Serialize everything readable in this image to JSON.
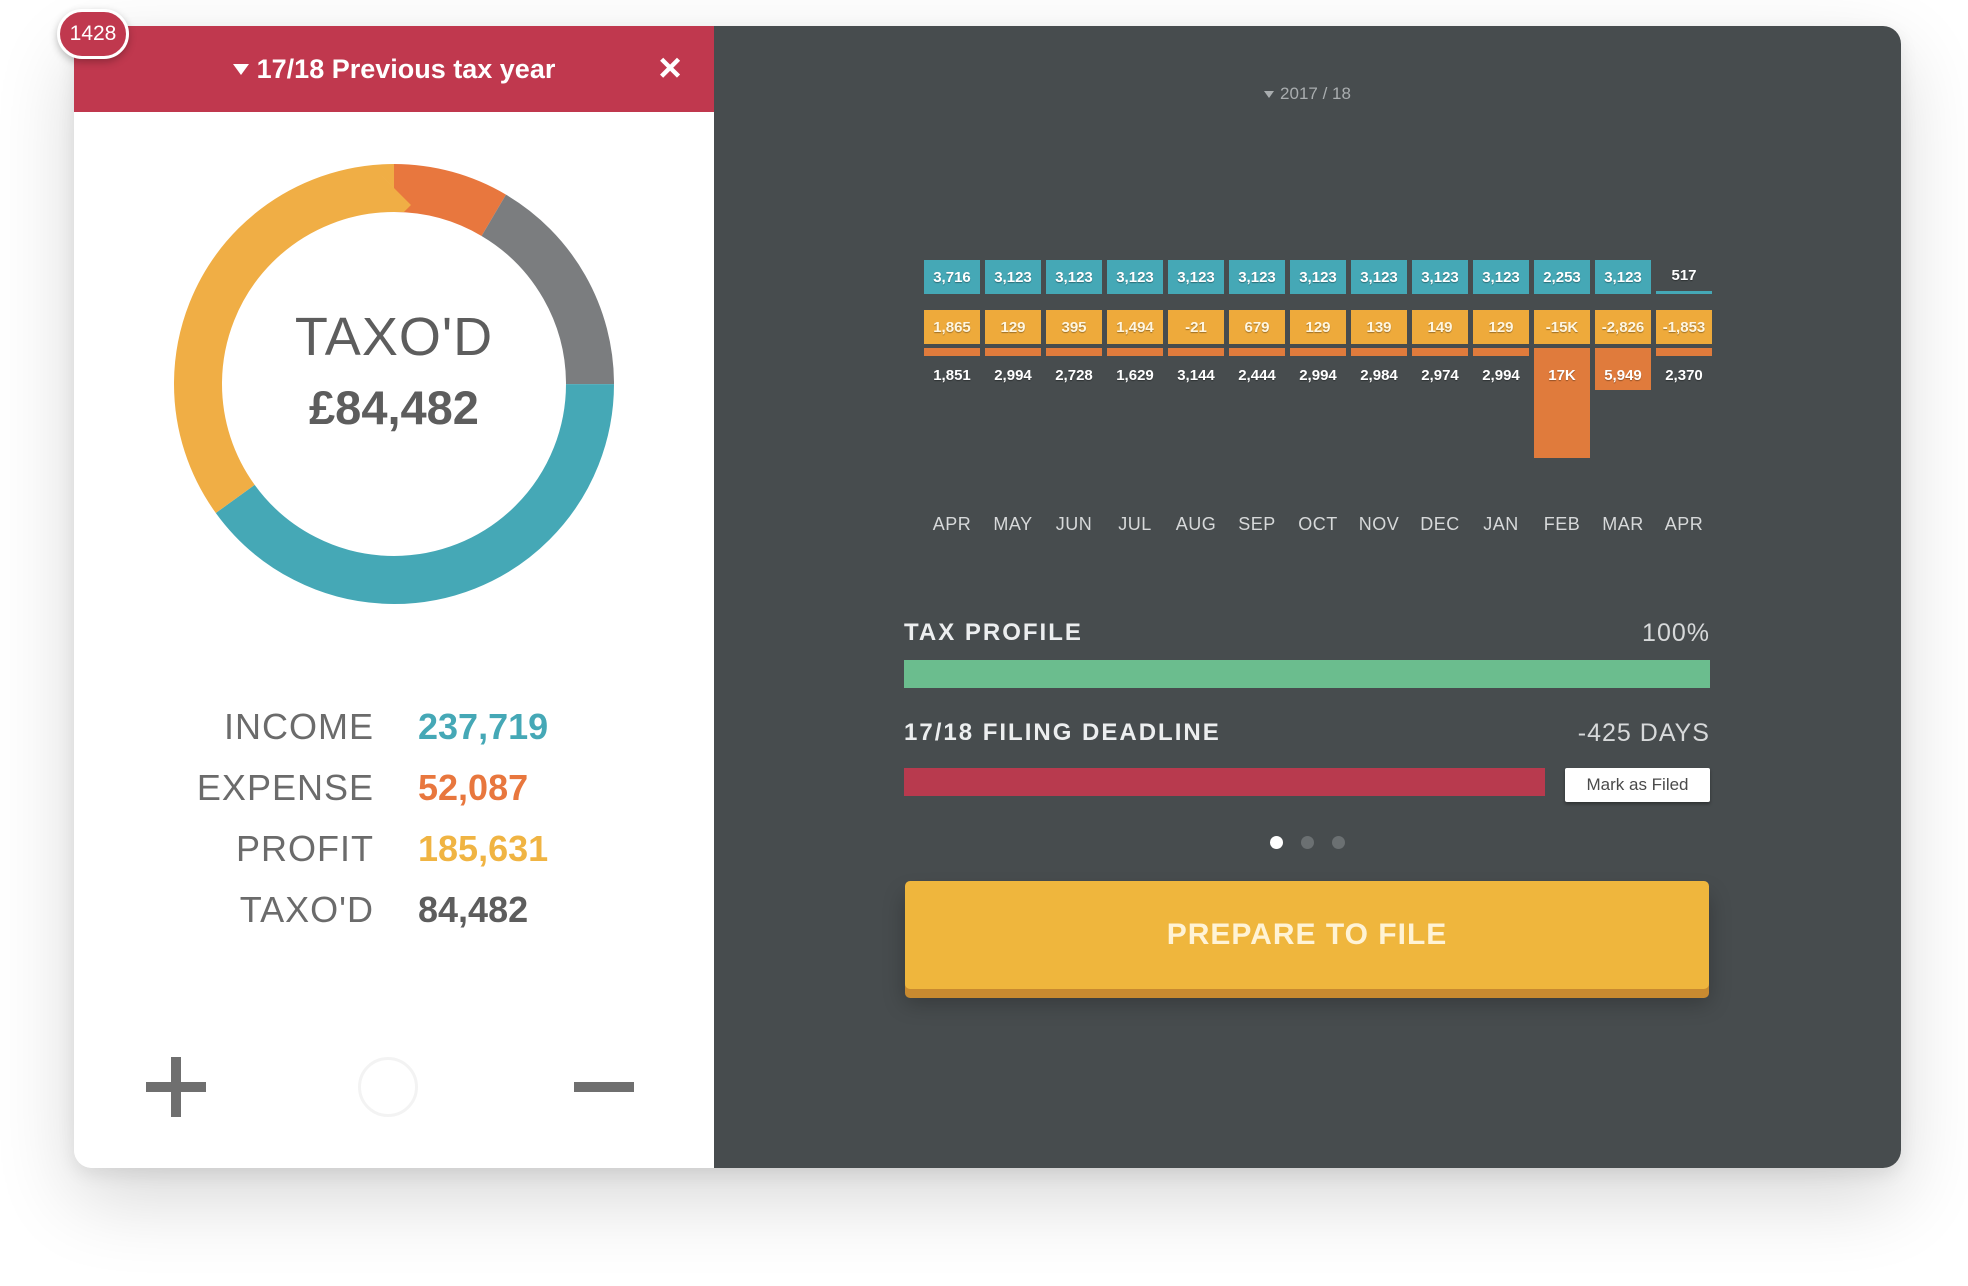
{
  "notification_badge": "1428",
  "left_panel": {
    "header": {
      "title": "17/18 Previous tax year",
      "close_icon": "close-icon"
    },
    "donut": {
      "title": "TAXO'D",
      "value": "£84,482",
      "segments": [
        {
          "name": "orange",
          "color": "#e8773e",
          "fraction": 0.085
        },
        {
          "name": "grey",
          "color": "#7b7d7f",
          "fraction": 0.165
        },
        {
          "name": "teal",
          "color": "#45a8b6",
          "fraction": 0.4
        },
        {
          "name": "yellow",
          "color": "#f0ae45",
          "fraction": 0.35
        }
      ]
    },
    "stats": [
      {
        "label": "INCOME",
        "value": "237,719",
        "color": "#45a8b6"
      },
      {
        "label": "EXPENSE",
        "value": "52,087",
        "color": "#e8773e"
      },
      {
        "label": "PROFIT",
        "value": "185,631",
        "color": "#f0b443"
      },
      {
        "label": "TAXO'D",
        "value": "84,482",
        "color": "#5d5d5d"
      }
    ],
    "footer_icons": [
      "plus-icon",
      "circle-icon",
      "minus-icon"
    ]
  },
  "right_panel": {
    "year_select": "2017 / 18",
    "months": [
      {
        "month": "APR",
        "income": "3,716",
        "expense": "1,865",
        "taxod": "1,851",
        "tax_value": 1851
      },
      {
        "month": "MAY",
        "income": "3,123",
        "expense": "129",
        "taxod": "2,994",
        "tax_value": 2994
      },
      {
        "month": "JUN",
        "income": "3,123",
        "expense": "395",
        "taxod": "2,728",
        "tax_value": 2728
      },
      {
        "month": "JUL",
        "income": "3,123",
        "expense": "1,494",
        "taxod": "1,629",
        "tax_value": 1629
      },
      {
        "month": "AUG",
        "income": "3,123",
        "expense": "-21",
        "taxod": "3,144",
        "tax_value": 3144
      },
      {
        "month": "SEP",
        "income": "3,123",
        "expense": "679",
        "taxod": "2,444",
        "tax_value": 2444
      },
      {
        "month": "OCT",
        "income": "3,123",
        "expense": "129",
        "taxod": "2,994",
        "tax_value": 2994
      },
      {
        "month": "NOV",
        "income": "3,123",
        "expense": "139",
        "taxod": "2,984",
        "tax_value": 2984
      },
      {
        "month": "DEC",
        "income": "3,123",
        "expense": "149",
        "taxod": "2,974",
        "tax_value": 2974
      },
      {
        "month": "JAN",
        "income": "3,123",
        "expense": "129",
        "taxod": "2,994",
        "tax_value": 2994
      },
      {
        "month": "FEB",
        "income": "2,253",
        "expense": "-15K",
        "taxod": "17K",
        "tax_value": 17000
      },
      {
        "month": "MAR",
        "income": "3,123",
        "expense": "-2,826",
        "taxod": "5,949",
        "tax_value": 5949
      },
      {
        "month": "APR",
        "income": "517",
        "expense": "-1,853",
        "taxod": "2,370",
        "tax_value": 2370
      }
    ],
    "tax_profile": {
      "label": "TAX PROFILE",
      "value": "100%",
      "fraction": 1.0,
      "color": "#6bbd8e"
    },
    "filing_deadline": {
      "label": "17/18 FILING DEADLINE",
      "value": "-425 DAYS",
      "color": "#b83a4e"
    },
    "mark_as_filed_label": "Mark as Filed",
    "pagination": {
      "count": 3,
      "active": 0
    },
    "prepare_button_label": "PREPARE TO FILE"
  }
}
